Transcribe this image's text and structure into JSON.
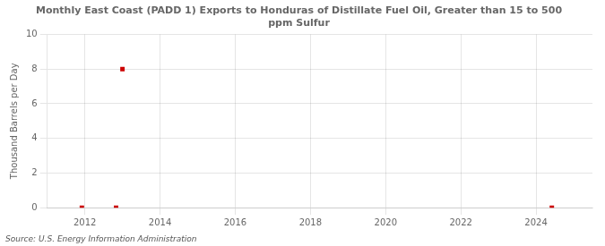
{
  "chart_data": {
    "type": "scatter",
    "title": "Monthly East Coast (PADD 1) Exports to Honduras of Distillate Fuel Oil, Greater than 15 to 500\nppm Sulfur",
    "ylabel": "Thousand Barrels per Day",
    "annotations": [
      "Source: U.S. Energy Information Administration"
    ],
    "x": [
      2011.92,
      2012.83,
      2013.0,
      2024.42
    ],
    "values": [
      0.0,
      0.0,
      8.0,
      0.0
    ],
    "color": "#cc0000",
    "marker": "square",
    "xlim": [
      2011.0,
      2025.5
    ],
    "ylim": [
      0,
      10
    ],
    "xticks": [
      2012,
      2014,
      2016,
      2018,
      2020,
      2022,
      2024
    ],
    "yticks": [
      0,
      2,
      4,
      6,
      8,
      10
    ],
    "grid": true
  }
}
